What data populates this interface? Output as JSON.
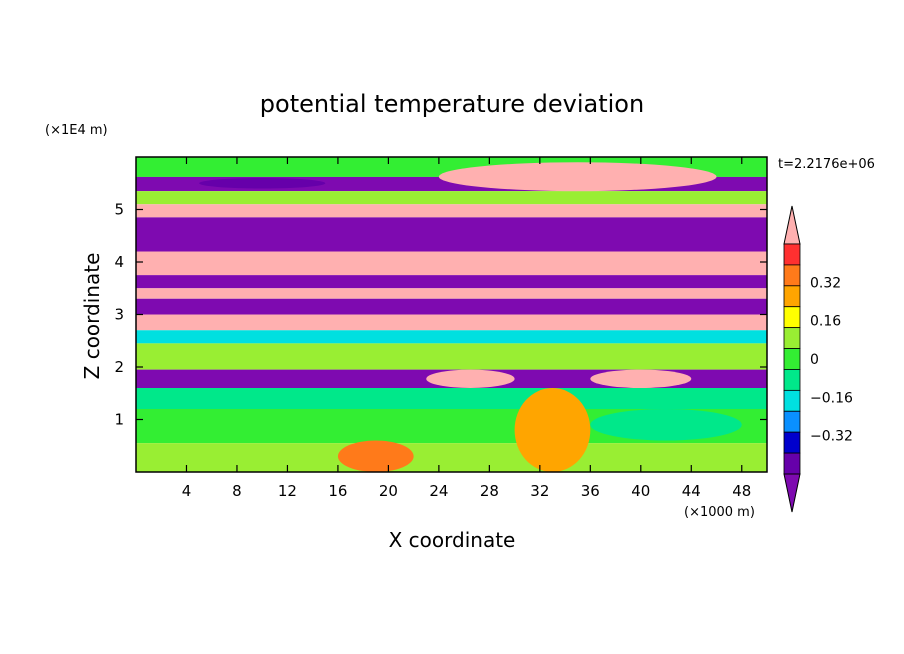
{
  "chart_data": {
    "type": "heatmap",
    "title": "potential temperature deviation",
    "xlabel": "X coordinate",
    "ylabel": "Z coordinate",
    "x_unit": "(×1000 m)",
    "y_unit": "(×1E4 m)",
    "time_label": "t=2.2176e+06",
    "xlim": [
      0,
      50
    ],
    "ylim": [
      0,
      6
    ],
    "x_ticks": [
      4,
      8,
      12,
      16,
      20,
      24,
      28,
      32,
      36,
      40,
      44,
      48
    ],
    "y_ticks": [
      1,
      2,
      3,
      4,
      5
    ],
    "colorbar": {
      "levels": [
        "0.32",
        "0.16",
        "0",
        "−0.16",
        "−0.32"
      ],
      "level_values": [
        0.32,
        0.16,
        0,
        -0.16,
        -0.32
      ],
      "colors": [
        "#ffb0b0",
        "#ff3030",
        "#ff7a1a",
        "#ffa500",
        "#ffff00",
        "#99ee33",
        "#33ee33",
        "#00e88a",
        "#00e0e0",
        "#0a90ff",
        "#0000cc",
        "#6600aa",
        "#7e0ab0"
      ],
      "bounds": [
        -0.4,
        0.4
      ]
    },
    "bands": [
      {
        "z": [
          5.62,
          6.0
        ],
        "level": 0.02
      },
      {
        "z": [
          5.35,
          5.62
        ],
        "level": -0.4
      },
      {
        "z": [
          5.1,
          5.35
        ],
        "level": 0.05
      },
      {
        "z": [
          4.85,
          5.1
        ],
        "level": 0.4
      },
      {
        "z": [
          4.2,
          4.85
        ],
        "level": -0.4
      },
      {
        "z": [
          3.75,
          4.2
        ],
        "level": 0.4
      },
      {
        "z": [
          3.5,
          3.75
        ],
        "level": -0.4
      },
      {
        "z": [
          3.3,
          3.5
        ],
        "level": 0.4
      },
      {
        "z": [
          3.0,
          3.3
        ],
        "level": -0.4
      },
      {
        "z": [
          2.7,
          3.0
        ],
        "level": 0.4
      },
      {
        "z": [
          2.45,
          2.7
        ],
        "level": -0.1
      },
      {
        "z": [
          1.95,
          2.45
        ],
        "level": 0.05
      },
      {
        "z": [
          1.6,
          1.95
        ],
        "level": -0.4
      },
      {
        "z": [
          1.2,
          1.6
        ],
        "level": -0.08
      },
      {
        "z": [
          0.55,
          1.2
        ],
        "level": 0.02
      },
      {
        "z": [
          0.0,
          0.55
        ],
        "level": 0.1
      }
    ],
    "features": [
      {
        "x": [
          24,
          46
        ],
        "z": [
          5.35,
          5.9
        ],
        "level": 0.4
      },
      {
        "x": [
          5,
          15
        ],
        "z": [
          5.4,
          5.6
        ],
        "level": -0.32
      },
      {
        "x": [
          30,
          36
        ],
        "z": [
          0.0,
          1.6
        ],
        "level": 0.2
      },
      {
        "x": [
          16,
          22
        ],
        "z": [
          0.0,
          0.6
        ],
        "level": 0.3
      },
      {
        "x": [
          23,
          30
        ],
        "z": [
          1.6,
          1.95
        ],
        "level": 0.4
      },
      {
        "x": [
          36,
          44
        ],
        "z": [
          1.6,
          1.95
        ],
        "level": 0.4
      },
      {
        "x": [
          36,
          48
        ],
        "z": [
          0.6,
          1.2
        ],
        "level": -0.08
      }
    ]
  }
}
